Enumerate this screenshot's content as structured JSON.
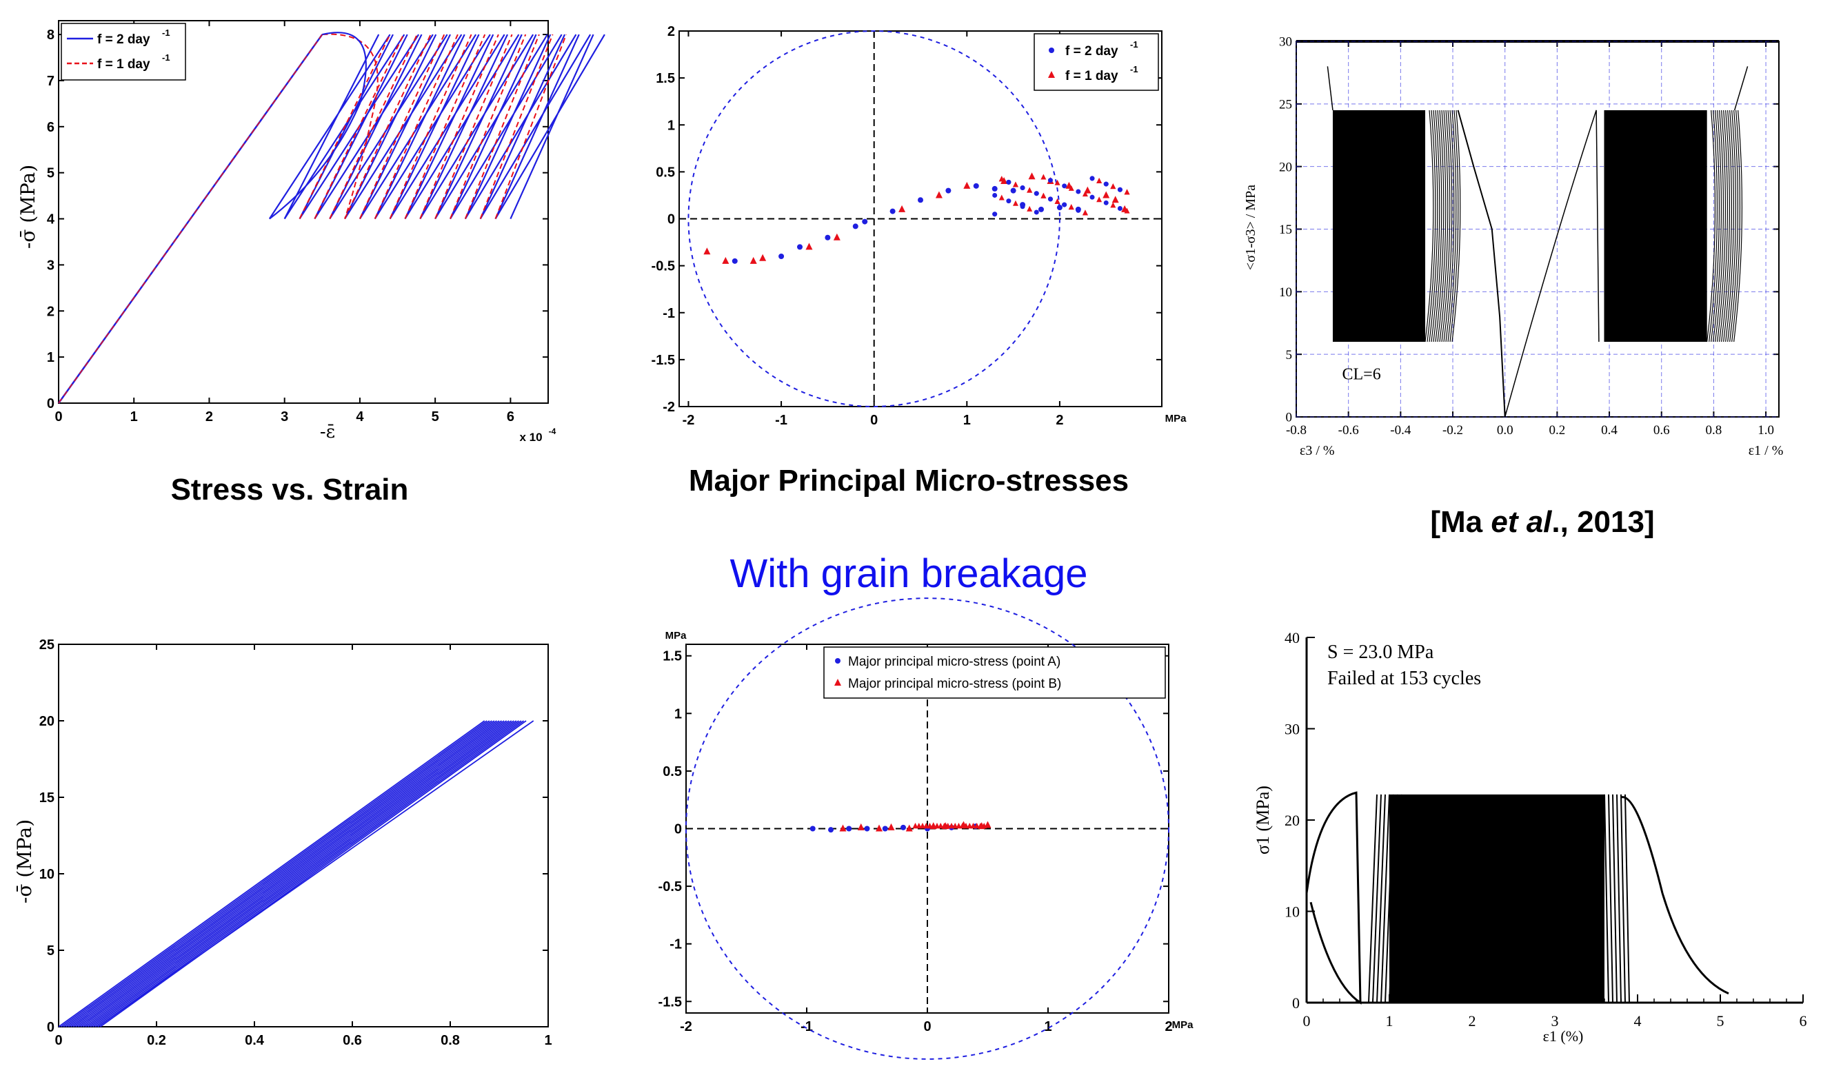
{
  "captions": {
    "tl": "Stress vs. Strain",
    "tm": "Major Principal Micro-stresses",
    "tr_pre": "[Ma ",
    "tr_ital": "et al",
    "tr_post": "., 2013]",
    "middle": "With grain breakage"
  },
  "colors": {
    "blue": "#1f1fe0",
    "red": "#e8101a",
    "banner": "#1010ee"
  },
  "chart_data": [
    {
      "id": "tl",
      "type": "line",
      "title": "Stress vs. Strain",
      "xlabel": "-ε̄",
      "ylabel": "-σ̄ (MPa)",
      "x_multiplier": "x 10^-4",
      "xlim": [
        0,
        6.5
      ],
      "ylim": [
        0,
        8.3
      ],
      "xticks": [
        "0",
        "1",
        "2",
        "3",
        "4",
        "5",
        "6"
      ],
      "yticks": [
        "0",
        "1",
        "2",
        "3",
        "4",
        "5",
        "6",
        "7",
        "8"
      ],
      "legend": [
        "f = 2 day-1",
        "f = 1 day-1"
      ],
      "series": [
        {
          "name": "f = 2 day-1",
          "color": "blue",
          "style": "solid",
          "x": [
            0,
            3.5,
            2.8,
            3.5,
            4.0,
            4.5,
            5.0,
            5.5,
            6.0
          ],
          "y": [
            0,
            8,
            4,
            8,
            4,
            8,
            4,
            8,
            4
          ]
        },
        {
          "name": "f = 1 day-1",
          "color": "red",
          "style": "dashed",
          "x": [
            0,
            3.5,
            3.2,
            3.9,
            4.4,
            5.0,
            5.6,
            6.2
          ],
          "y": [
            0,
            8,
            4,
            8,
            4,
            8,
            4,
            8
          ]
        }
      ]
    },
    {
      "id": "tm",
      "type": "scatter",
      "title": "Major Principal Micro-stresses",
      "xlabel": "MPa",
      "xlim": [
        -2.1,
        3.1
      ],
      "ylim": [
        -2,
        2
      ],
      "xticks": [
        "-2",
        "-1",
        "0",
        "1",
        "2"
      ],
      "yticks": [
        "-2",
        "-1.5",
        "-1",
        "-0.5",
        "0",
        "0.5",
        "1",
        "1.5",
        "2"
      ],
      "circle_radius": 2,
      "legend": [
        "f = 2 day-1",
        "f = 1 day-1"
      ],
      "series": [
        {
          "name": "f = 2 day-1",
          "color": "blue",
          "x": [
            -1.5,
            -1.0,
            -0.8,
            -0.5,
            -0.2,
            -0.1,
            0.2,
            0.5,
            0.8,
            1.1,
            1.3,
            1.5,
            1.6,
            1.8,
            2.0,
            2.2
          ],
          "y": [
            -0.45,
            -0.4,
            -0.3,
            -0.2,
            -0.08,
            -0.03,
            0.08,
            0.2,
            0.3,
            0.35,
            0.32,
            0.3,
            0.15,
            0.1,
            0.12,
            0.1
          ]
        },
        {
          "name": "f = 1 day-1",
          "color": "red",
          "x": [
            -1.8,
            -1.6,
            -1.3,
            -1.2,
            -0.7,
            -0.4,
            0.3,
            0.7,
            1.0,
            1.4,
            1.7,
            1.9,
            2.1,
            2.3,
            2.5,
            2.6,
            2.7
          ],
          "y": [
            -0.35,
            -0.45,
            -0.45,
            -0.42,
            -0.3,
            -0.2,
            0.1,
            0.25,
            0.35,
            0.4,
            0.45,
            0.4,
            0.35,
            0.3,
            0.25,
            0.2,
            0.1
          ]
        }
      ]
    },
    {
      "id": "tr",
      "type": "line",
      "title": "[Ma et al., 2013]",
      "xlabel_left": "ε3 / %",
      "xlabel_right": "ε1 / %",
      "ylabel": "<σ1-σ3> / MPa",
      "annotation": "CL=6",
      "xlim": [
        -0.8,
        1.05
      ],
      "ylim": [
        0,
        30
      ],
      "xticks": [
        "-0.8",
        "-0.6",
        "-0.4",
        "-0.2",
        "0.0",
        "0.2",
        "0.4",
        "0.6",
        "0.8",
        "1.0"
      ],
      "yticks": [
        "0",
        "5",
        "10",
        "15",
        "20",
        "25",
        "30"
      ],
      "cyclic_bands": [
        {
          "x_from": -0.66,
          "x_to": -0.2,
          "y_from": 6,
          "y_to": 24.5
        },
        {
          "x_from": 0.38,
          "x_to": 0.88,
          "y_from": 6,
          "y_to": 24.5
        }
      ]
    },
    {
      "id": "bl",
      "type": "line",
      "xlabel": "-ε̄",
      "ylabel": "-σ̄ (MPa)",
      "xlim": [
        0,
        1
      ],
      "ylim": [
        0,
        25
      ],
      "xticks": [
        "0",
        "0.2",
        "0.4",
        "0.6",
        "0.8",
        "1"
      ],
      "yticks": [
        "0",
        "5",
        "10",
        "15",
        "20",
        "25"
      ],
      "series": [
        {
          "color": "blue",
          "style": "solid",
          "x": [
            0,
            0.87
          ],
          "y": [
            0,
            20
          ]
        },
        {
          "color": "blue",
          "style": "solid",
          "x": [
            0.08,
            0.97
          ],
          "y": [
            0,
            20
          ]
        }
      ]
    },
    {
      "id": "bm",
      "type": "scatter",
      "ylabel": "MPa",
      "xlabel": "MPa",
      "xlim": [
        -2,
        2
      ],
      "ylim": [
        -1.6,
        1.6
      ],
      "xticks": [
        "-2",
        "-1",
        "0",
        "1",
        "2"
      ],
      "yticks": [
        "-1.5",
        "-1",
        "-0.5",
        "0",
        "0.5",
        "1",
        "1.5"
      ],
      "circle_radius": 2,
      "legend": [
        "Major principal micro-stress (point A)",
        "Major principal micro-stress (point B)"
      ],
      "series": [
        {
          "name": "Major principal micro-stress (point A)",
          "color": "blue",
          "x": [
            -0.95,
            -0.8,
            -0.65,
            -0.5,
            -0.35,
            -0.2,
            0.0,
            0.2,
            0.4
          ],
          "y": [
            0.0,
            -0.01,
            0.0,
            0.0,
            0.0,
            0.01,
            0.0,
            0.01,
            0.02
          ]
        },
        {
          "name": "Major principal micro-stress (point B)",
          "color": "red",
          "x": [
            -0.7,
            -0.55,
            -0.4,
            -0.3,
            -0.15,
            0.05,
            0.15,
            0.3,
            0.45,
            0.5
          ],
          "y": [
            0.0,
            0.01,
            0.0,
            0.01,
            0.0,
            0.02,
            0.02,
            0.03,
            0.02,
            0.03
          ]
        }
      ]
    },
    {
      "id": "br",
      "type": "line",
      "ylabel": "σ1 (MPa)",
      "xlabel": "ε1 (%)",
      "annotation1": "S = 23.0 MPa",
      "annotation2": "Failed at 153 cycles",
      "xlim": [
        0,
        6
      ],
      "ylim": [
        0,
        40
      ],
      "xticks": [
        "0",
        "1",
        "2",
        "3",
        "4",
        "5",
        "6"
      ],
      "yticks": [
        "0",
        "10",
        "20",
        "30",
        "40"
      ],
      "cyclic_band": {
        "x_from": 1.0,
        "x_to": 3.6,
        "y_from": 0,
        "y_to": 22.8
      }
    }
  ]
}
